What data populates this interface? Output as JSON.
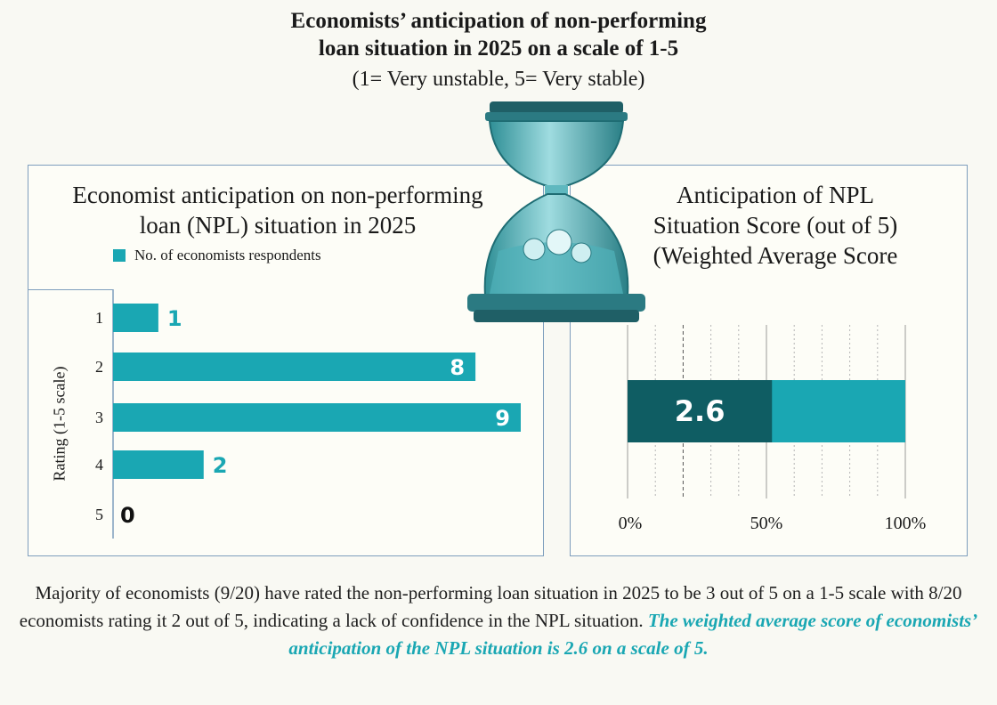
{
  "header": {
    "title_line1": "Economists’ anticipation of non-performing",
    "title_line2": "loan situation in 2025 on a scale of 1-5",
    "subtitle": "(1= Very unstable, 5= Very stable)"
  },
  "left_chart": {
    "title_line1": "Economist anticipation on non-performing",
    "title_line2": "loan (NPL) situation in 2025",
    "legend": "No. of economists respondents",
    "ylabel": "Rating (1-5 scale)"
  },
  "right_chart": {
    "title_line1": "Anticipation of NPL",
    "title_line2": "Situation Score (out of 5)",
    "title_line3": "(Weighted Average Score"
  },
  "summary": {
    "plain": "Majority of economists (9/20) have rated the non-performing loan situation in 2025 to be 3 out of 5 on a 1-5 scale with 8/20 economists rating it 2 out of 5, indicating a lack of confidence in the NPL situation. ",
    "highlight": "The weighted average score of economists’ anticipation of the NPL situation is 2.6 on a scale of 5."
  },
  "colors": {
    "teal": "#1aa7b3",
    "dark_teal": "#0f5d63",
    "text": "#1a1a1a"
  },
  "chart_data": [
    {
      "type": "bar",
      "orientation": "horizontal",
      "title": "Economist anticipation on non-performing loan (NPL) situation in 2025",
      "categories": [
        "1",
        "2",
        "3",
        "4",
        "5"
      ],
      "series": [
        {
          "name": "No. of economists respondents",
          "values": [
            1,
            8,
            9,
            2,
            0
          ]
        }
      ],
      "ylabel": "Rating (1-5 scale)",
      "xlim": [
        0,
        9
      ]
    },
    {
      "type": "bar",
      "orientation": "horizontal",
      "title": "Anticipation of NPL Situation Score (out of 5) (Weighted Average Score",
      "value": 2.6,
      "value_label": "2.6",
      "max": 5,
      "xticks": [
        "0%",
        "50%",
        "100%"
      ],
      "xlim": [
        0,
        100
      ]
    }
  ]
}
